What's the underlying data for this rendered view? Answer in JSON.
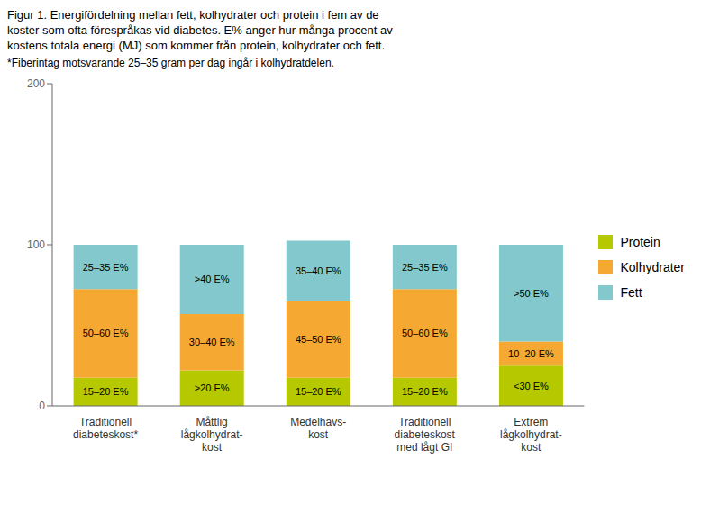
{
  "chart_data": {
    "type": "bar",
    "stacked": true,
    "title": "Figur 1. Energifördelning mellan fett, kolhydrater och protein i fem av de\nkoster som ofta förespråkas vid diabetes. E% anger hur många procent av\nkostens totala energi (MJ) som kommer från protein, kolhydrater och fett.",
    "subtitle": "*Fiberintag motsvarande 25–35 gram per dag ingår i kolhydratdelen.",
    "categories": [
      "Traditionell\ndiabeteskost*",
      "Måttlig\nlågkolhydrat-\nkost",
      "Medelhavs-\nkost",
      "Traditionell\ndiabeteskost\nmed lågt GI",
      "Extrem\nlågkolhydrat-\nkost"
    ],
    "series": [
      {
        "name": "Protein",
        "color": "#b5c800",
        "values": [
          17.5,
          22,
          17.5,
          17.5,
          25
        ],
        "value_labels": [
          "15–20 E%",
          ">20 E%",
          "15–20 E%",
          "15–20 E%",
          "<30 E%"
        ]
      },
      {
        "name": "Kolhydrater",
        "color": "#f5a832",
        "values": [
          55,
          35,
          47.5,
          55,
          15
        ],
        "value_labels": [
          "50–60 E%",
          "30–40 E%",
          "45–50 E%",
          "50–60 E%",
          "10–20 E%"
        ]
      },
      {
        "name": "Fett",
        "color": "#82c8cc",
        "values": [
          27.5,
          43,
          37.5,
          27.5,
          60
        ],
        "value_labels": [
          "25–35 E%",
          ">40 E%",
          "35–40 E%",
          "25–35 E%",
          ">50 E%"
        ]
      }
    ],
    "ylim": [
      0,
      200
    ],
    "yticks": [
      0,
      100,
      200
    ],
    "data_labels": true,
    "legend": "right",
    "grid": false
  }
}
